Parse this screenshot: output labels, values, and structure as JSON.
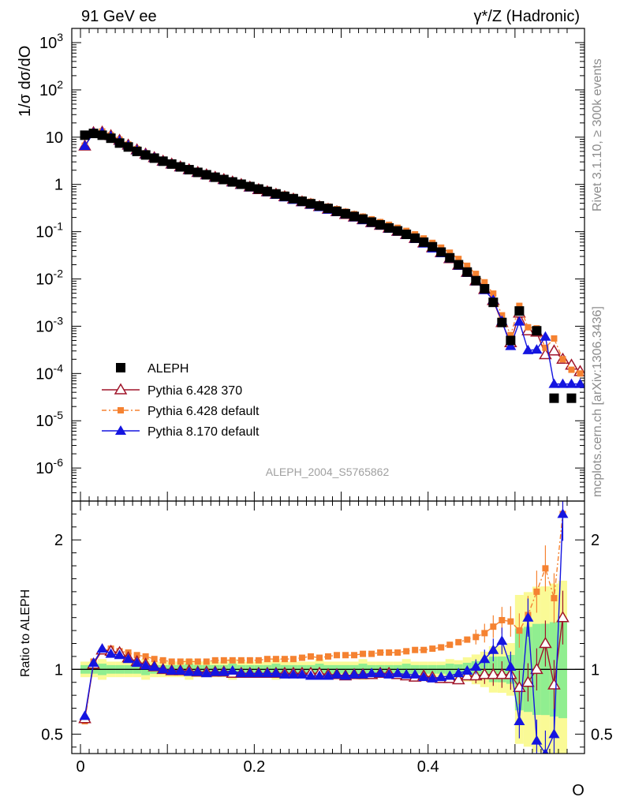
{
  "header": {
    "left": "91 GeV ee",
    "right": "γ*/Z (Hadronic)"
  },
  "side": {
    "rivet": "Rivet 3.1.10, ≥ 300k events",
    "mcplots": "mcplots.cern.ch [arXiv:1306.3436]"
  },
  "chart_data": {
    "type": "scatter",
    "analysis_label": "ALEPH_2004_S5765862",
    "top_panel": {
      "ylabel": "1/σ  dσ/dO",
      "yscale": "log",
      "ylim": [
        2e-07,
        2000
      ],
      "ytick_labels": [
        "10^-6",
        "10^-5",
        "10^-4",
        "10^-3",
        "10^-2",
        "10^-1",
        "1",
        "10",
        "10^2",
        "10^3"
      ]
    },
    "bottom_panel": {
      "ylabel": "Ratio to ALEPH",
      "ylim": [
        0.35,
        2.3
      ],
      "ytick_labels": [
        "0.5",
        "1",
        "2"
      ]
    },
    "xlabel": "O",
    "xlim": [
      -0.01,
      0.58
    ],
    "xtick_labels": [
      "0",
      "0.2",
      "0.4"
    ],
    "legend_position": "bottom-left",
    "legend": [
      {
        "key": "data",
        "label": "ALEPH"
      },
      {
        "key": "p6_370",
        "label": "Pythia 6.428 370"
      },
      {
        "key": "p6_def",
        "label": "Pythia 6.428 default"
      },
      {
        "key": "p8_def",
        "label": "Pythia 8.170 default"
      }
    ],
    "colors": {
      "data": "#000000",
      "p6_370": "#a0152a",
      "p6_def": "#f58231",
      "p8_def": "#1515e0",
      "band_inner": "#90ee90",
      "band_outer": "#fafa96"
    },
    "x": [
      0.005,
      0.015,
      0.025,
      0.035,
      0.045,
      0.055,
      0.065,
      0.075,
      0.085,
      0.095,
      0.105,
      0.115,
      0.125,
      0.135,
      0.145,
      0.155,
      0.165,
      0.175,
      0.185,
      0.195,
      0.205,
      0.215,
      0.225,
      0.235,
      0.245,
      0.255,
      0.265,
      0.275,
      0.285,
      0.295,
      0.305,
      0.315,
      0.325,
      0.335,
      0.345,
      0.355,
      0.365,
      0.375,
      0.385,
      0.395,
      0.405,
      0.415,
      0.425,
      0.435,
      0.445,
      0.455,
      0.465,
      0.475,
      0.485,
      0.495,
      0.505,
      0.515,
      0.525,
      0.535,
      0.545,
      0.555,
      0.565,
      0.575
    ],
    "series": [
      {
        "name": "ALEPH",
        "values": [
          11,
          12,
          11,
          9.5,
          7.5,
          6.2,
          5.0,
          4.2,
          3.6,
          3.1,
          2.7,
          2.35,
          2.05,
          1.8,
          1.6,
          1.42,
          1.27,
          1.13,
          1.01,
          0.9,
          0.8,
          0.71,
          0.63,
          0.56,
          0.5,
          0.44,
          0.39,
          0.35,
          0.31,
          0.27,
          0.24,
          0.21,
          0.185,
          0.16,
          0.14,
          0.12,
          0.104,
          0.088,
          0.073,
          0.06,
          0.048,
          0.037,
          0.028,
          0.02,
          0.014,
          0.0092,
          0.0062,
          0.0032,
          0.0012,
          0.0005,
          0.0021,
          0.0008,
          0.0008,
          0.0002,
          3e-05,
          4e-05,
          3e-05,
          4e-05
        ]
      },
      {
        "name": "Pythia 6.428 370",
        "values": [
          6.5,
          12.5,
          12.8,
          10.8,
          8.6,
          6.8,
          5.4,
          4.4,
          3.7,
          3.1,
          2.7,
          2.35,
          2.05,
          1.8,
          1.6,
          1.42,
          1.27,
          1.13,
          1.0,
          0.88,
          0.78,
          0.7,
          0.62,
          0.55,
          0.49,
          0.43,
          0.38,
          0.34,
          0.3,
          0.265,
          0.232,
          0.205,
          0.18,
          0.156,
          0.137,
          0.119,
          0.102,
          0.087,
          0.072,
          0.058,
          0.046,
          0.036,
          0.027,
          0.0195,
          0.0138,
          0.0091,
          0.006,
          0.0035,
          0.0012,
          0.00045,
          0.0019,
          0.0008,
          0.00075,
          0.00025,
          0.0003,
          0.0002,
          0.00015,
          0.00011
        ]
      },
      {
        "name": "Pythia 6.428 default",
        "values": [
          6.6,
          12.7,
          13.2,
          11.0,
          8.8,
          7.0,
          5.6,
          4.55,
          3.85,
          3.25,
          2.83,
          2.46,
          2.15,
          1.89,
          1.68,
          1.5,
          1.34,
          1.19,
          1.07,
          0.96,
          0.85,
          0.76,
          0.68,
          0.61,
          0.54,
          0.48,
          0.43,
          0.38,
          0.34,
          0.3,
          0.265,
          0.235,
          0.208,
          0.183,
          0.16,
          0.14,
          0.121,
          0.104,
          0.088,
          0.072,
          0.058,
          0.046,
          0.036,
          0.0265,
          0.019,
          0.0128,
          0.0085,
          0.0049,
          0.0017,
          0.00065,
          0.0027,
          0.00095,
          0.0009,
          0.00035,
          0.00055,
          0.0002,
          0.00012,
          0.0001
        ]
      },
      {
        "name": "Pythia 8.170 default",
        "values": [
          6.5,
          12.3,
          12.7,
          10.5,
          8.4,
          6.7,
          5.3,
          4.35,
          3.65,
          3.05,
          2.65,
          2.3,
          2.0,
          1.76,
          1.56,
          1.38,
          1.23,
          1.1,
          0.97,
          0.86,
          0.77,
          0.68,
          0.6,
          0.53,
          0.47,
          0.42,
          0.37,
          0.33,
          0.29,
          0.26,
          0.23,
          0.2,
          0.175,
          0.153,
          0.134,
          0.115,
          0.1,
          0.085,
          0.07,
          0.056,
          0.044,
          0.035,
          0.027,
          0.019,
          0.0135,
          0.0089,
          0.0058,
          0.0036,
          0.0013,
          0.00038,
          0.00125,
          0.00031,
          0.00032,
          0.0006,
          6e-05,
          6e-05,
          6e-05,
          6e-05
        ]
      }
    ],
    "ratio": {
      "x": [
        0.005,
        0.015,
        0.025,
        0.035,
        0.045,
        0.055,
        0.065,
        0.075,
        0.085,
        0.095,
        0.105,
        0.115,
        0.125,
        0.135,
        0.145,
        0.155,
        0.165,
        0.175,
        0.185,
        0.195,
        0.205,
        0.215,
        0.225,
        0.235,
        0.245,
        0.255,
        0.265,
        0.275,
        0.285,
        0.295,
        0.305,
        0.315,
        0.325,
        0.335,
        0.345,
        0.355,
        0.365,
        0.375,
        0.385,
        0.395,
        0.405,
        0.415,
        0.425,
        0.435,
        0.445,
        0.455,
        0.465,
        0.475,
        0.485,
        0.495,
        0.505,
        0.515,
        0.525,
        0.535,
        0.545,
        0.555
      ],
      "p6_370": [
        0.62,
        1.04,
        1.15,
        1.14,
        1.13,
        1.09,
        1.06,
        1.04,
        1.02,
        1.0,
        0.99,
        0.99,
        0.99,
        0.98,
        0.98,
        0.98,
        0.98,
        0.97,
        0.97,
        0.97,
        0.97,
        0.97,
        0.97,
        0.97,
        0.97,
        0.97,
        0.97,
        0.97,
        0.96,
        0.96,
        0.95,
        0.96,
        0.96,
        0.96,
        0.97,
        0.97,
        0.96,
        0.95,
        0.94,
        0.95,
        0.94,
        0.93,
        0.93,
        0.92,
        0.95,
        0.95,
        0.96,
        0.96,
        0.96,
        0.96,
        0.86,
        0.9,
        1.0,
        1.2,
        0.88,
        1.4
      ],
      "p6_def": [
        0.6,
        1.06,
        1.14,
        1.16,
        1.14,
        1.13,
        1.11,
        1.1,
        1.08,
        1.07,
        1.06,
        1.06,
        1.06,
        1.06,
        1.06,
        1.07,
        1.07,
        1.07,
        1.07,
        1.07,
        1.07,
        1.08,
        1.08,
        1.08,
        1.08,
        1.09,
        1.1,
        1.09,
        1.1,
        1.11,
        1.11,
        1.11,
        1.12,
        1.12,
        1.13,
        1.13,
        1.13,
        1.14,
        1.15,
        1.15,
        1.16,
        1.17,
        1.19,
        1.21,
        1.23,
        1.25,
        1.28,
        1.33,
        1.38,
        1.37,
        1.3,
        1.42,
        1.6,
        1.78,
        1.55,
        2.2
      ],
      "p8_def": [
        0.64,
        1.05,
        1.16,
        1.12,
        1.11,
        1.08,
        1.05,
        1.03,
        1.02,
        1.0,
        0.99,
        0.99,
        0.98,
        0.98,
        0.97,
        0.98,
        0.98,
        0.99,
        0.97,
        0.97,
        0.97,
        0.97,
        0.97,
        0.96,
        0.96,
        0.96,
        0.95,
        0.95,
        0.95,
        0.96,
        0.95,
        0.96,
        0.96,
        0.97,
        0.97,
        0.96,
        0.97,
        0.96,
        0.96,
        0.94,
        0.93,
        0.94,
        0.95,
        0.97,
        0.99,
        1.02,
        1.08,
        1.15,
        1.22,
        1.02,
        0.6,
        1.4,
        0.45,
        0.35,
        0.5,
        2.2
      ]
    }
  }
}
